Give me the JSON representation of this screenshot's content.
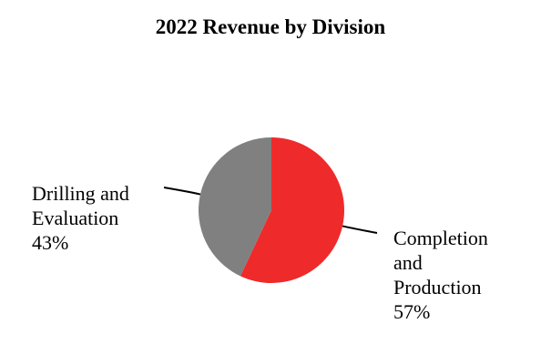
{
  "chart_data": {
    "type": "pie",
    "title": "2022 Revenue by Division",
    "slices": [
      {
        "label": "Completion and Production",
        "value": 57,
        "display": "57%",
        "color": "#ee2a2a"
      },
      {
        "label": "Drilling and Evaluation",
        "value": 43,
        "display": "43%",
        "color": "#808080"
      }
    ],
    "start_angle_deg": 0,
    "direction": "clockwise",
    "legend": "none"
  },
  "labels": {
    "left": [
      "Drilling and",
      "Evaluation",
      "43%"
    ],
    "right": [
      "Completion",
      "and",
      "Production",
      "57%"
    ]
  }
}
